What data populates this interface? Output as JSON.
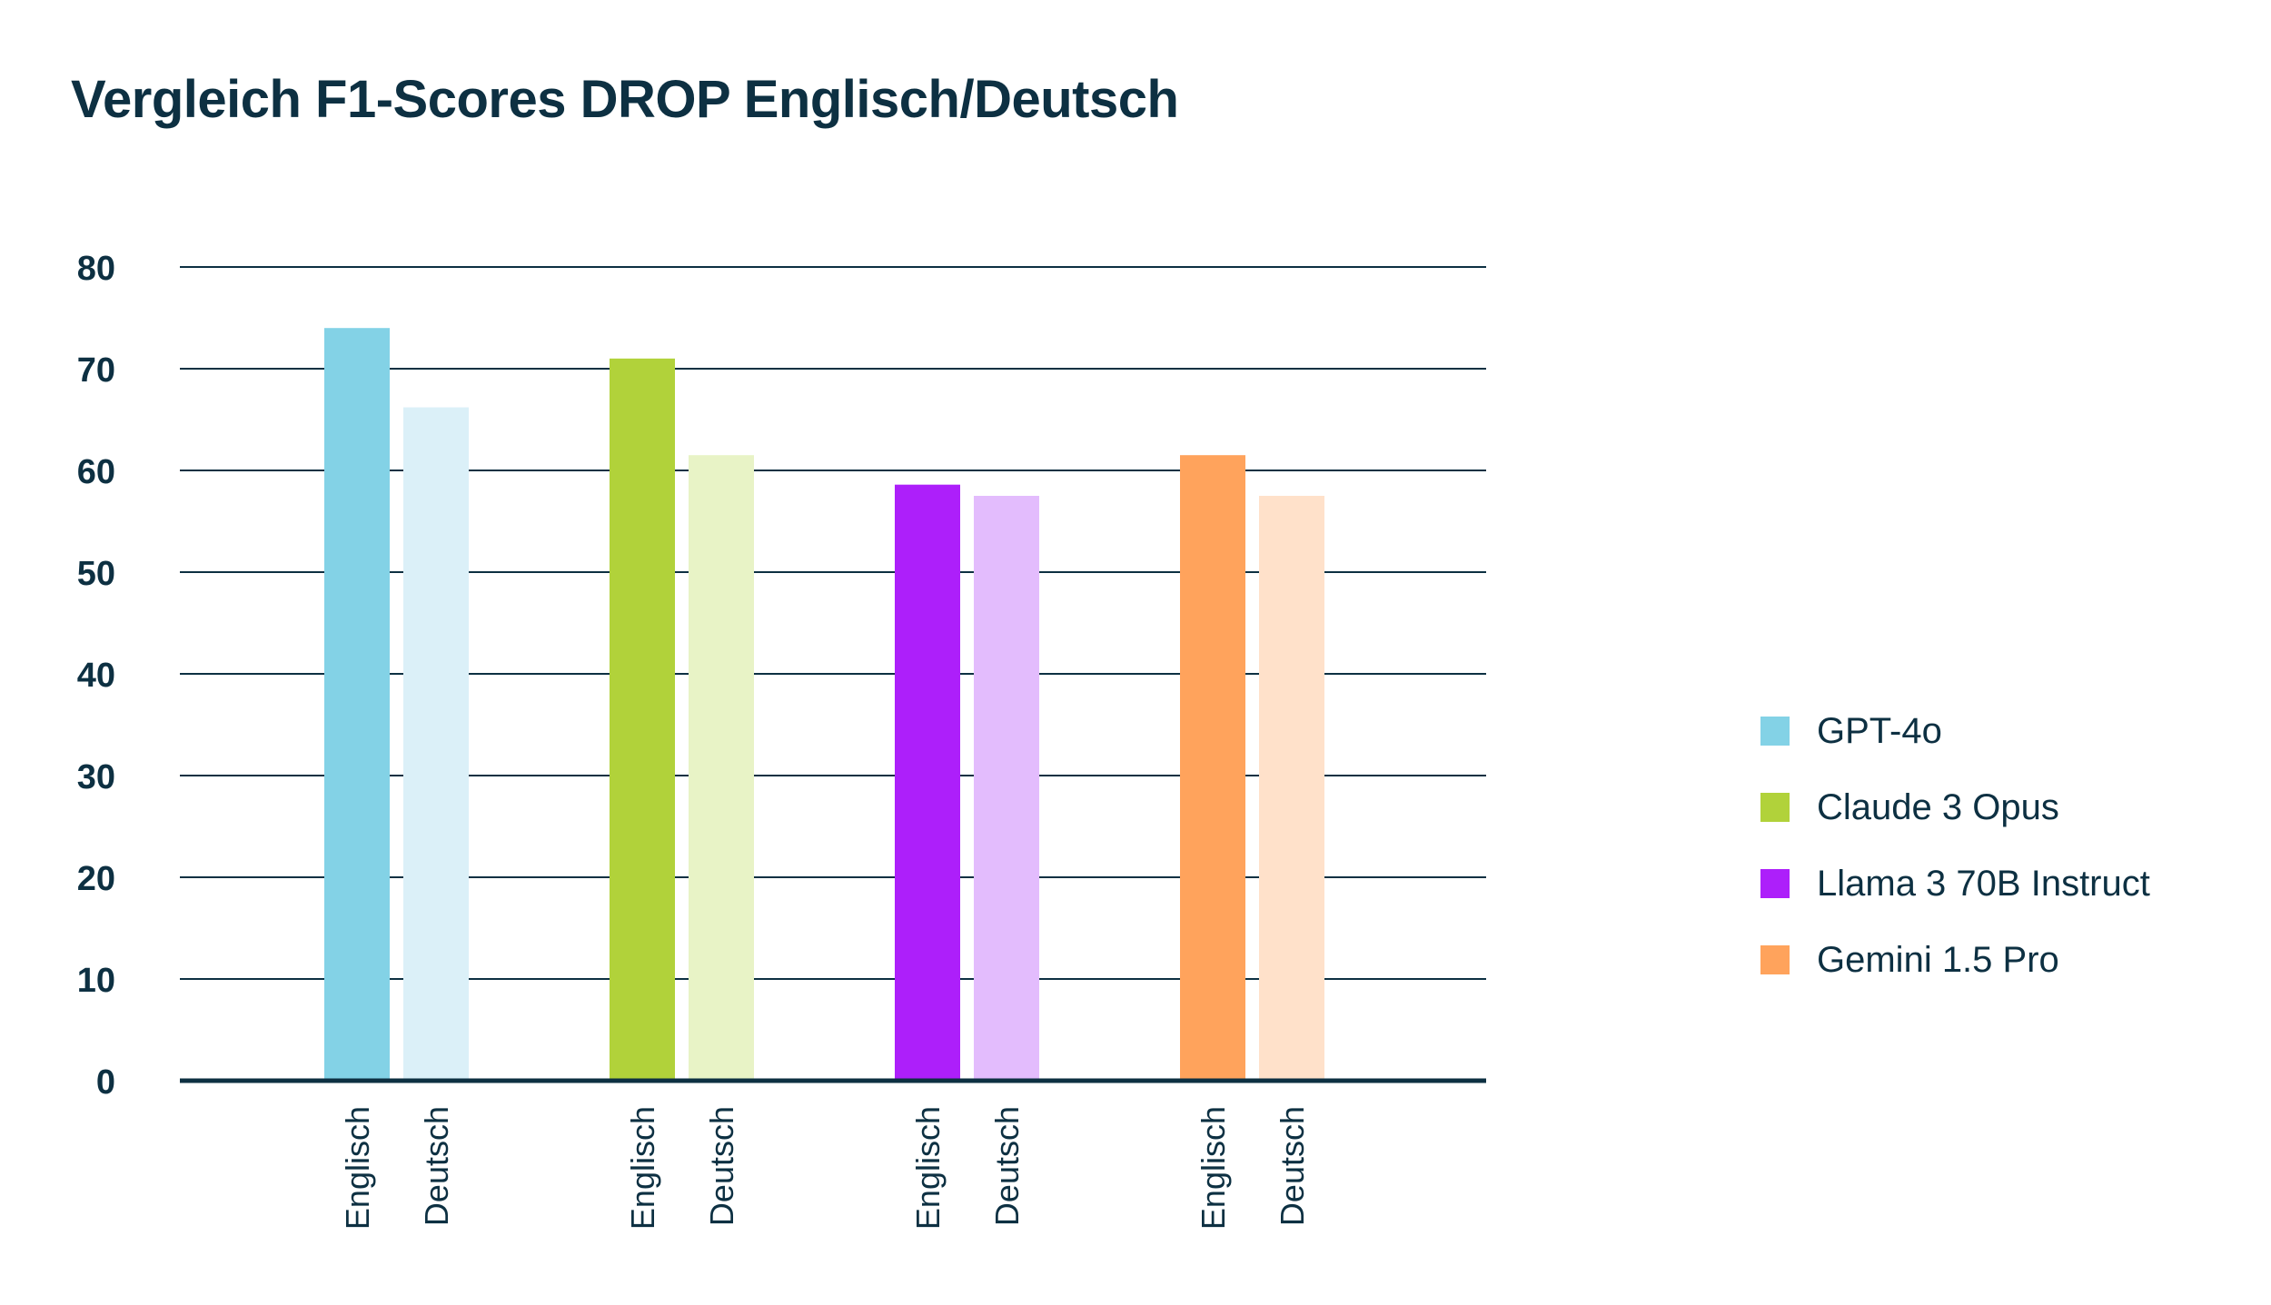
{
  "chart_data": {
    "type": "bar",
    "title": "Vergleich F1-Scores DROP Englisch/Deutsch",
    "xlabel": "",
    "ylabel": "",
    "ylim": [
      0,
      80
    ],
    "yticks": [
      "0",
      "10",
      "20",
      "30",
      "40",
      "50",
      "60",
      "70",
      "80"
    ],
    "grid": true,
    "legend_position": "right",
    "groups": [
      {
        "name": "GPT-4o",
        "color": "#83d2e6",
        "light_color": "#dbf0f8",
        "bars": [
          {
            "label": "Englisch",
            "value": 74
          },
          {
            "label": "Deutsch",
            "value": 66.2
          }
        ]
      },
      {
        "name": "Claude 3 Opus",
        "color": "#b1d23a",
        "light_color": "#e8f3c6",
        "bars": [
          {
            "label": "Englisch",
            "value": 71
          },
          {
            "label": "Deutsch",
            "value": 61.5
          }
        ]
      },
      {
        "name": "Llama 3 70B Instruct",
        "color": "#ad1ffa",
        "light_color": "#e3bcfd",
        "bars": [
          {
            "label": "Englisch",
            "value": 58.6
          },
          {
            "label": "Deutsch",
            "value": 57.5
          }
        ]
      },
      {
        "name": "Gemini 1.5 Pro",
        "color": "#ffa35c",
        "light_color": "#ffe1ca",
        "bars": [
          {
            "label": "Englisch",
            "value": 61.5
          },
          {
            "label": "Deutsch",
            "value": 57.5
          }
        ]
      }
    ]
  }
}
